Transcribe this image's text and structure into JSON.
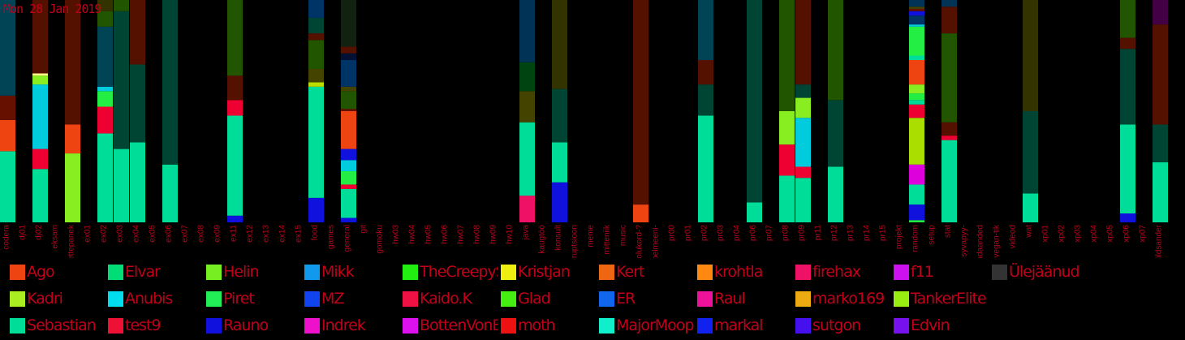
{
  "date_label": "Mon 28 Jan 2019",
  "chart_data": {
    "type": "bar",
    "stacked": true,
    "title": "",
    "xlabel": "",
    "ylabel": "",
    "ylim": [
      0,
      100
    ],
    "categories": [
      "codera",
      "dj01",
      "dj02",
      "eksam",
      "ettepanek",
      "ex01",
      "ex02",
      "ex03",
      "ex04",
      "ex05",
      "ex06",
      "ex07",
      "ex08",
      "ex09",
      "ex11",
      "ex12",
      "ex13",
      "ex14",
      "ex15",
      "food",
      "games",
      "general",
      "git",
      "gomoku",
      "hw03",
      "hw04",
      "hw05",
      "hw06",
      "hw07",
      "hw08",
      "hw09",
      "hw10",
      "java",
      "kaugtöö",
      "konsult",
      "korruptsioon",
      "meme",
      "mitteniik",
      "music",
      "olukord-?",
      "pelmeeni-",
      "pr00",
      "pr01",
      "pr02",
      "pr03",
      "pr04",
      "pr06",
      "pr07",
      "pr08",
      "pr09",
      "pr11",
      "pr12",
      "pr13",
      "pr14",
      "pr15",
      "projekt",
      "random",
      "setup",
      "stat",
      "syvapyy-",
      "teadaanded",
      "vegan-tik",
      "videod",
      "wat",
      "xp01",
      "xp02",
      "xp03",
      "xp04",
      "xp05",
      "xp06",
      "xp07",
      "üldsander"
    ],
    "bars": [
      {
        "category": "codera",
        "segments": [
          {
            "color": "#00dd99",
            "value": 32
          },
          {
            "color": "#ee4411",
            "value": 14
          },
          {
            "color": "#661100",
            "value": 11
          },
          {
            "color": "#004455",
            "value": 43
          }
        ]
      },
      {
        "category": "dj02",
        "segments": [
          {
            "color": "#00dd99",
            "value": 24
          },
          {
            "color": "#ee0033",
            "value": 9
          },
          {
            "color": "#00ccdd",
            "value": 29
          },
          {
            "color": "#88ee22",
            "value": 4
          },
          {
            "color": "#ffff88",
            "value": 1
          },
          {
            "color": "#551100",
            "value": 33
          }
        ]
      },
      {
        "category": "ettepanek",
        "segments": [
          {
            "color": "#88ee22",
            "value": 31
          },
          {
            "color": "#ee4411",
            "value": 13
          },
          {
            "color": "#551100",
            "value": 56
          }
        ]
      },
      {
        "category": "ex02",
        "segments": [
          {
            "color": "#00dd99",
            "value": 40
          },
          {
            "color": "#ee0033",
            "value": 12
          },
          {
            "color": "#22ee44",
            "value": 7
          },
          {
            "color": "#00ccdd",
            "value": 2
          },
          {
            "color": "#004455",
            "value": 27
          },
          {
            "color": "#225500",
            "value": 7
          },
          {
            "color": "#333300",
            "value": 5
          }
        ]
      },
      {
        "category": "ex03",
        "segments": [
          {
            "color": "#00dd99",
            "value": 33
          },
          {
            "color": "#004433",
            "value": 62
          },
          {
            "color": "#225500",
            "value": 5
          }
        ]
      },
      {
        "category": "ex04",
        "segments": [
          {
            "color": "#00dd99",
            "value": 36
          },
          {
            "color": "#004433",
            "value": 35
          },
          {
            "color": "#551100",
            "value": 29
          }
        ]
      },
      {
        "category": "ex06",
        "segments": [
          {
            "color": "#00dd99",
            "value": 26
          },
          {
            "color": "#004433",
            "value": 74
          }
        ]
      },
      {
        "category": "ex11",
        "segments": [
          {
            "color": "#1111dd",
            "value": 3
          },
          {
            "color": "#00dd99",
            "value": 45
          },
          {
            "color": "#ee0033",
            "value": 7
          },
          {
            "color": "#551100",
            "value": 11
          },
          {
            "color": "#225500",
            "value": 34
          }
        ]
      },
      {
        "category": "food",
        "segments": [
          {
            "color": "#1111dd",
            "value": 11
          },
          {
            "color": "#00dd99",
            "value": 50
          },
          {
            "color": "#bbdd00",
            "value": 2
          },
          {
            "color": "#444400",
            "value": 6
          },
          {
            "color": "#225500",
            "value": 13
          },
          {
            "color": "#551100",
            "value": 3
          },
          {
            "color": "#004433",
            "value": 7
          },
          {
            "color": "#003366",
            "value": 8
          }
        ]
      },
      {
        "category": "general",
        "segments": [
          {
            "color": "#1111dd",
            "value": 2
          },
          {
            "color": "#00dd99",
            "value": 13
          },
          {
            "color": "#ee0033",
            "value": 2
          },
          {
            "color": "#22ee44",
            "value": 6
          },
          {
            "color": "#00ccdd",
            "value": 5
          },
          {
            "color": "#1111dd",
            "value": 5
          },
          {
            "color": "#ee4411",
            "value": 17
          },
          {
            "color": "#661100",
            "value": 1
          },
          {
            "color": "#225500",
            "value": 8
          },
          {
            "color": "#444400",
            "value": 2
          },
          {
            "color": "#003366",
            "value": 12
          },
          {
            "color": "#001133",
            "value": 3
          },
          {
            "color": "#551100",
            "value": 3
          },
          {
            "color": "#112211",
            "value": 21
          }
        ]
      },
      {
        "category": "java",
        "segments": [
          {
            "color": "#ee1166",
            "value": 12
          },
          {
            "color": "#00dd99",
            "value": 33
          },
          {
            "color": "#444400",
            "value": 14
          },
          {
            "color": "#004411",
            "value": 13
          },
          {
            "color": "#003355",
            "value": 28
          }
        ]
      },
      {
        "category": "konsult",
        "segments": [
          {
            "color": "#1111dd",
            "value": 18
          },
          {
            "color": "#00dd99",
            "value": 18
          },
          {
            "color": "#004433",
            "value": 24
          },
          {
            "color": "#333300",
            "value": 40
          }
        ]
      },
      {
        "category": "olukord-?",
        "segments": [
          {
            "color": "#ee4411",
            "value": 8
          },
          {
            "color": "#551100",
            "value": 92
          }
        ]
      },
      {
        "category": "pr02",
        "segments": [
          {
            "color": "#00dd99",
            "value": 48
          },
          {
            "color": "#004433",
            "value": 14
          },
          {
            "color": "#551100",
            "value": 11
          },
          {
            "color": "#004455",
            "value": 27
          }
        ]
      },
      {
        "category": "pr06",
        "segments": [
          {
            "color": "#00dd99",
            "value": 9
          },
          {
            "color": "#004433",
            "value": 91
          }
        ]
      },
      {
        "category": "pr08",
        "segments": [
          {
            "color": "#00dd99",
            "value": 21
          },
          {
            "color": "#ee0033",
            "value": 14
          },
          {
            "color": "#88ee22",
            "value": 15
          },
          {
            "color": "#225500",
            "value": 50
          }
        ]
      },
      {
        "category": "pr09",
        "segments": [
          {
            "color": "#00dd99",
            "value": 20
          },
          {
            "color": "#ee0033",
            "value": 5
          },
          {
            "color": "#00ccdd",
            "value": 22
          },
          {
            "color": "#88ee22",
            "value": 9
          },
          {
            "color": "#004433",
            "value": 6
          },
          {
            "color": "#551100",
            "value": 38
          }
        ]
      },
      {
        "category": "pr12",
        "segments": [
          {
            "color": "#00dd99",
            "value": 25
          },
          {
            "color": "#004433",
            "value": 30
          },
          {
            "color": "#225500",
            "value": 45
          }
        ]
      },
      {
        "category": "random",
        "segments": [
          {
            "color": "#22ee44",
            "value": 1
          },
          {
            "color": "#1111dd",
            "value": 7
          },
          {
            "color": "#00dd99",
            "value": 9
          },
          {
            "color": "#dd00dd",
            "value": 9
          },
          {
            "color": "#aadd00",
            "value": 21
          },
          {
            "color": "#ee0033",
            "value": 6
          },
          {
            "color": "#00dd99",
            "value": 2
          },
          {
            "color": "#22ee44",
            "value": 3
          },
          {
            "color": "#88ee22",
            "value": 4
          },
          {
            "color": "#ee4411",
            "value": 11
          },
          {
            "color": "#00dd99",
            "value": 2
          },
          {
            "color": "#22ee44",
            "value": 13
          },
          {
            "color": "#00ccdd",
            "value": 1
          },
          {
            "color": "#003366",
            "value": 4
          },
          {
            "color": "#1111dd",
            "value": 2
          },
          {
            "color": "#661100",
            "value": 1
          },
          {
            "color": "#444400",
            "value": 1
          },
          {
            "color": "#003355",
            "value": 3
          }
        ]
      },
      {
        "category": "stat",
        "segments": [
          {
            "color": "#00dd99",
            "value": 37
          },
          {
            "color": "#ee0033",
            "value": 2
          },
          {
            "color": "#551100",
            "value": 6
          },
          {
            "color": "#225500",
            "value": 40
          },
          {
            "color": "#551100",
            "value": 12
          },
          {
            "color": "#003355",
            "value": 3
          }
        ]
      },
      {
        "category": "wat",
        "segments": [
          {
            "color": "#00dd99",
            "value": 13
          },
          {
            "color": "#004433",
            "value": 37
          },
          {
            "color": "#333300",
            "value": 50
          }
        ]
      },
      {
        "category": "xp06",
        "segments": [
          {
            "color": "#1111dd",
            "value": 4
          },
          {
            "color": "#00dd99",
            "value": 40
          },
          {
            "color": "#004433",
            "value": 34
          },
          {
            "color": "#551100",
            "value": 5
          },
          {
            "color": "#225500",
            "value": 17
          }
        ]
      },
      {
        "category": "üldsander",
        "segments": [
          {
            "color": "#00dd99",
            "value": 27
          },
          {
            "color": "#004433",
            "value": 17
          },
          {
            "color": "#551100",
            "value": 45
          },
          {
            "color": "#440044",
            "value": 11
          }
        ]
      }
    ]
  },
  "legend": [
    {
      "label": "Ago",
      "color": "#ee4411"
    },
    {
      "label": "Elvar",
      "color": "#00dd77"
    },
    {
      "label": "Helin",
      "color": "#77ee22"
    },
    {
      "label": "Mikk",
      "color": "#1199ee"
    },
    {
      "label": "TheCreepySheep",
      "color": "#22ee11"
    },
    {
      "label": "Kristjan",
      "color": "#eeee11"
    },
    {
      "label": "Kert",
      "color": "#ee6611"
    },
    {
      "label": "krohtla",
      "color": "#ff8811"
    },
    {
      "label": "firehax",
      "color": "#ee1166"
    },
    {
      "label": "f11",
      "color": "#cc11ee"
    },
    {
      "label": "Ülejäänud",
      "color": "#333333"
    },
    {
      "label": "Kadri",
      "color": "#aaee22"
    },
    {
      "label": "Anubis",
      "color": "#00ddee"
    },
    {
      "label": "Piret",
      "color": "#22ee55"
    },
    {
      "label": "MZ",
      "color": "#1144ee"
    },
    {
      "label": "Kaido.K",
      "color": "#ee1144"
    },
    {
      "label": "Glad",
      "color": "#44ee11"
    },
    {
      "label": "ER",
      "color": "#1166ee"
    },
    {
      "label": "Raul",
      "color": "#ee1199"
    },
    {
      "label": "marko169",
      "color": "#eeaa11"
    },
    {
      "label": "TankerElite",
      "color": "#99ee11"
    },
    {
      "label": "Sebastian",
      "color": "#00dd99"
    },
    {
      "label": "test9",
      "color": "#ee1133"
    },
    {
      "label": "Rauno",
      "color": "#1111dd"
    },
    {
      "label": "Indrek",
      "color": "#ee11cc"
    },
    {
      "label": "BottenVonBot",
      "color": "#dd11ee"
    },
    {
      "label": "moth",
      "color": "#ee1111"
    },
    {
      "label": "MajorMoopsy",
      "color": "#11eecc"
    },
    {
      "label": "markal",
      "color": "#1122ee"
    },
    {
      "label": "sutgon",
      "color": "#4411ee"
    },
    {
      "label": "Edvin",
      "color": "#7711ee"
    }
  ]
}
